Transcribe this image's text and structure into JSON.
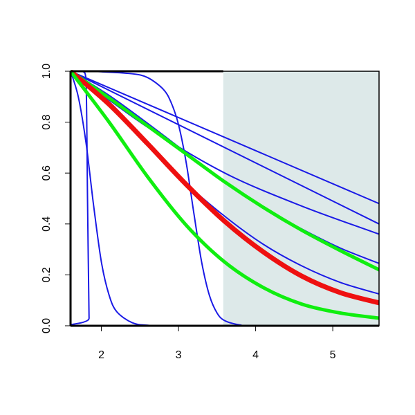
{
  "chart_data": {
    "type": "line",
    "title": "",
    "xlabel": "",
    "ylabel": "",
    "xlim": [
      1.6,
      5.6
    ],
    "ylim": [
      0.0,
      1.0
    ],
    "x_ticks": [
      2,
      3,
      4,
      5
    ],
    "x_tick_labels": [
      "2",
      "3",
      "4",
      "5"
    ],
    "y_ticks": [
      0.0,
      0.2,
      0.4,
      0.6,
      0.8,
      1.0
    ],
    "y_tick_labels": [
      "0.0",
      "0.2",
      "0.4",
      "0.6",
      "0.8",
      "1.0"
    ],
    "grid": false,
    "shaded_region": {
      "x_start": 3.58,
      "x_end": 5.6,
      "color": "#dde9e9"
    },
    "series": [
      {
        "color": "#1a1ae6",
        "width": "thin",
        "x": [
          1.6,
          1.75,
          1.8,
          1.82,
          1.84,
          1.85,
          5.6
        ],
        "y": [
          1.0,
          1.0,
          0.97,
          0.5,
          0.03,
          0.0,
          0.0
        ]
      },
      {
        "color": "#1a1ae6",
        "width": "thin",
        "x": [
          1.6,
          1.7,
          1.8,
          1.9,
          2.0,
          2.1,
          2.2,
          2.4,
          2.6,
          3.0,
          5.6
        ],
        "y": [
          1.0,
          0.9,
          0.72,
          0.47,
          0.25,
          0.12,
          0.055,
          0.012,
          0.002,
          0.0,
          0.0
        ]
      },
      {
        "color": "#1a1ae6",
        "width": "thin",
        "x": [
          1.6,
          1.8,
          2.0,
          2.4,
          2.6,
          2.8,
          2.9,
          3.0,
          3.1,
          3.2,
          3.3,
          3.4,
          3.5,
          3.6,
          3.8,
          4.0,
          5.6
        ],
        "y": [
          1.0,
          1.0,
          0.998,
          0.99,
          0.975,
          0.93,
          0.88,
          0.79,
          0.64,
          0.44,
          0.25,
          0.12,
          0.05,
          0.02,
          0.003,
          0.0,
          0.0
        ]
      },
      {
        "color": "#1a1ae6",
        "width": "thin",
        "x": [
          1.6,
          5.6
        ],
        "y": [
          1.0,
          0.48
        ]
      },
      {
        "color": "#1a1ae6",
        "width": "thin",
        "x": [
          1.6,
          5.6
        ],
        "y": [
          1.0,
          0.4
        ]
      },
      {
        "color": "#1a1ae6",
        "width": "thin",
        "x": [
          1.6,
          2.6,
          3.6,
          4.6,
          5.6
        ],
        "y": [
          1.0,
          0.78,
          0.6,
          0.47,
          0.36
        ]
      },
      {
        "color": "#1a1ae6",
        "width": "thin",
        "x": [
          1.6,
          2.1,
          2.6,
          3.1,
          3.6,
          4.1,
          4.6,
          5.1,
          5.6
        ],
        "y": [
          1.0,
          0.905,
          0.795,
          0.68,
          0.565,
          0.465,
          0.38,
          0.305,
          0.245
        ]
      },
      {
        "color": "#1a1ae6",
        "width": "thin",
        "x": [
          1.6,
          2.1,
          2.6,
          3.1,
          3.6,
          4.1,
          4.6,
          5.1,
          5.6
        ],
        "y": [
          1.0,
          0.88,
          0.72,
          0.56,
          0.43,
          0.32,
          0.235,
          0.17,
          0.125
        ]
      },
      {
        "color": "#10ee10",
        "width": "thick",
        "x": [
          1.6,
          2.1,
          2.6,
          3.1,
          3.6,
          4.1,
          4.6,
          5.1,
          5.6
        ],
        "y": [
          1.0,
          0.895,
          0.785,
          0.675,
          0.565,
          0.465,
          0.375,
          0.295,
          0.22
        ]
      },
      {
        "color": "#ee1010",
        "width": "thicker",
        "x": [
          1.6,
          2.1,
          2.6,
          3.1,
          3.6,
          4.1,
          4.6,
          5.1,
          5.6
        ],
        "y": [
          1.0,
          0.87,
          0.715,
          0.555,
          0.41,
          0.29,
          0.195,
          0.13,
          0.09
        ]
      },
      {
        "color": "#10ee10",
        "width": "thick",
        "x": [
          1.6,
          2.1,
          2.6,
          3.1,
          3.6,
          4.1,
          4.6,
          5.1,
          5.6
        ],
        "y": [
          1.0,
          0.8,
          0.585,
          0.395,
          0.25,
          0.15,
          0.085,
          0.05,
          0.03
        ]
      }
    ]
  }
}
